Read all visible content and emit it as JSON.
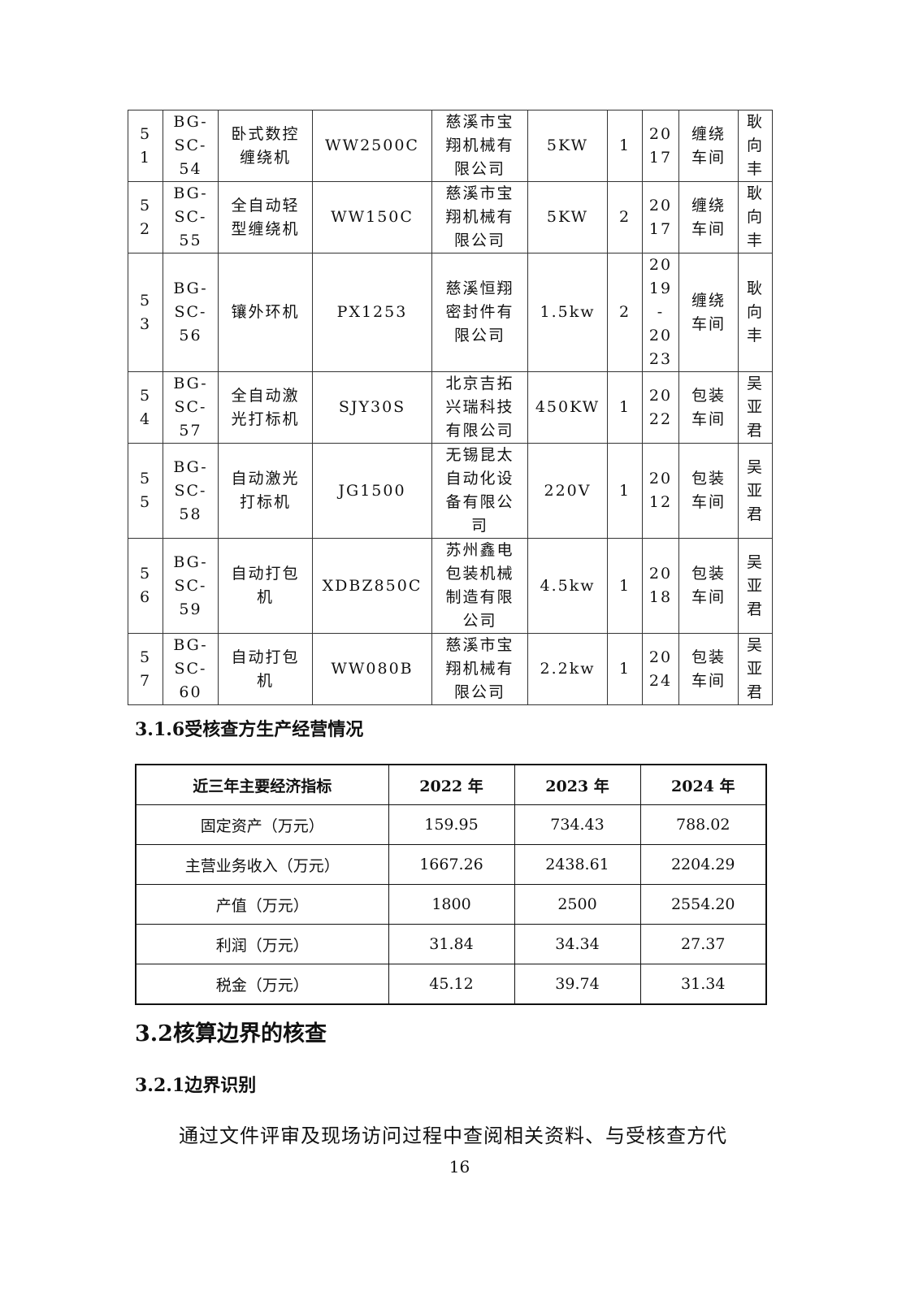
{
  "equipment_table": {
    "rows": [
      [
        "5\n1",
        "BG-\nSC-\n54",
        "卧式数控\n缠绕机",
        "WW2500C",
        "慈溪市宝\n翔机械有\n限公司",
        "5KW",
        "1",
        "20\n17",
        "缠绕\n车间",
        "耿\n向\n丰"
      ],
      [
        "5\n2",
        "BG-\nSC-\n55",
        "全自动轻\n型缠绕机",
        "WW150C",
        "慈溪市宝\n翔机械有\n限公司",
        "5KW",
        "2",
        "20\n17",
        "缠绕\n车间",
        "耿\n向\n丰"
      ],
      [
        "5\n3",
        "BG-\nSC-\n56",
        "镶外环机",
        "PX1253",
        "慈溪恒翔\n密封件有\n限公司",
        "1.5kw",
        "2",
        "20\n19\n-\n20\n23",
        "缠绕\n车间",
        "耿\n向\n丰"
      ],
      [
        "5\n4",
        "BG-\nSC-\n57",
        "全自动激\n光打标机",
        "SJY30S",
        "北京吉拓\n兴瑞科技\n有限公司",
        "450KW",
        "1",
        "20\n22",
        "包装\n车间",
        "吴\n亚\n君"
      ],
      [
        "5\n5",
        "BG-\nSC-\n58",
        "自动激光\n打标机",
        "JG1500",
        "无锡昆太\n自动化设\n备有限公\n司",
        "220V",
        "1",
        "20\n12",
        "包装\n车间",
        "吴\n亚\n君"
      ],
      [
        "5\n6",
        "BG-\nSC-\n59",
        "自动打包\n机",
        "XDBZ850C",
        "苏州鑫电\n包装机械\n制造有限\n公司",
        "4.5kw",
        "1",
        "20\n18",
        "包装\n车间",
        "吴\n亚\n君"
      ],
      [
        "5\n7",
        "BG-\nSC-\n60",
        "自动打包\n机",
        "WW080B",
        "慈溪市宝\n翔机械有\n限公司",
        "2.2kw",
        "1",
        "20\n24",
        "包装\n车间",
        "吴\n亚\n君"
      ]
    ]
  },
  "heading_316": "3.1.6受核查方生产经营情况",
  "econ_table": {
    "header": [
      "近三年主要经济指标",
      "2022 年",
      "2023 年",
      "2024 年"
    ],
    "rows": [
      [
        "固定资产（万元）",
        "159.95",
        "734.43",
        "788.02"
      ],
      [
        "主营业务收入（万元）",
        "1667.26",
        "2438.61",
        "2204.29"
      ],
      [
        "产值（万元）",
        "1800",
        "2500",
        "2554.20"
      ],
      [
        "利润（万元）",
        "31.84",
        "34.34",
        "27.37"
      ],
      [
        "税金（万元）",
        "45.12",
        "39.74",
        "31.34"
      ]
    ]
  },
  "heading_32": "3.2核算边界的核查",
  "heading_321": "3.2.1边界识别",
  "paragraph": "通过文件评审及现场访问过程中查阅相关资料、与受核查方代",
  "page_number": "16"
}
